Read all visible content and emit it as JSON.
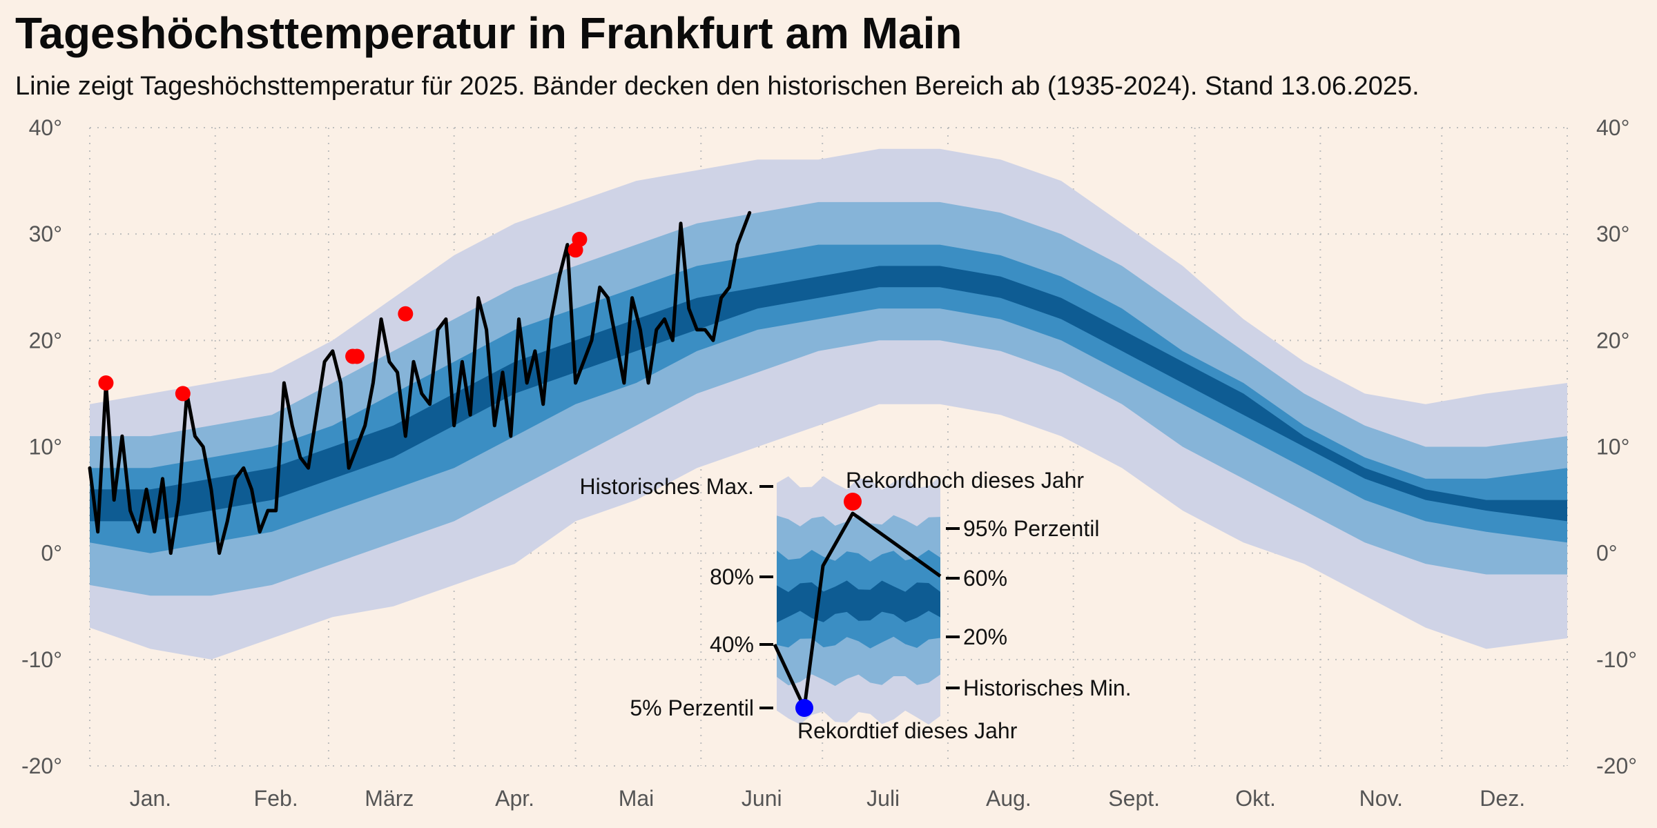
{
  "chart_data": {
    "type": "area",
    "title": "Tageshöchsttemperatur in Frankfurt am Main",
    "subtitle": "Linie zeigt Tageshöchsttemperatur für 2025. Bänder decken den historischen Bereich ab (1935-2024). Stand 13.06.2025.",
    "ylim": [
      -20,
      40
    ],
    "y_ticks": [
      "-20°",
      "-10°",
      "0°",
      "10°",
      "20°",
      "30°",
      "40°"
    ],
    "y_tick_values": [
      -20,
      -10,
      0,
      10,
      20,
      30,
      40
    ],
    "x_range_days": [
      1,
      366
    ],
    "x_ticks": [
      "Jan.",
      "Feb.",
      "März",
      "Apr.",
      "Mai",
      "Juni",
      "Juli",
      "Aug.",
      "Sept.",
      "Okt.",
      "Nov.",
      "Dez."
    ],
    "x_tick_days": [
      16,
      47,
      75,
      106,
      136,
      167,
      197,
      228,
      259,
      289,
      320,
      350
    ],
    "grid": true,
    "colors": {
      "background": "#fbf0e6",
      "band_outer": "#cfd3e6",
      "band_95": "#86b4d8",
      "band_80": "#3b8ec3",
      "band_core": "#0e5c93",
      "line": "#000000",
      "record_high": "#ff0000",
      "record_low": "#0000ff",
      "grid": "#bdbdbd",
      "tick_text": "#555555"
    },
    "bands": [
      {
        "name": "Historisches Min./Max.",
        "x": [
          1,
          16,
          31,
          46,
          61,
          76,
          91,
          106,
          121,
          136,
          151,
          166,
          181,
          196,
          211,
          226,
          241,
          256,
          271,
          286,
          301,
          316,
          331,
          346,
          366
        ],
        "low": [
          -7,
          -9,
          -10,
          -8,
          -6,
          -5,
          -3,
          -1,
          3,
          5,
          8,
          10,
          12,
          14,
          14,
          13,
          11,
          8,
          4,
          1,
          -1,
          -4,
          -7,
          -9,
          -8
        ],
        "high": [
          14,
          15,
          16,
          17,
          20,
          24,
          28,
          31,
          33,
          35,
          36,
          37,
          37,
          38,
          38,
          37,
          35,
          31,
          27,
          22,
          18,
          15,
          14,
          15,
          16
        ]
      },
      {
        "name": "5% - 95% Perzentil",
        "x": [
          1,
          16,
          31,
          46,
          61,
          76,
          91,
          106,
          121,
          136,
          151,
          166,
          181,
          196,
          211,
          226,
          241,
          256,
          271,
          286,
          301,
          316,
          331,
          346,
          366
        ],
        "low": [
          -3,
          -4,
          -4,
          -3,
          -1,
          1,
          3,
          6,
          9,
          12,
          15,
          17,
          19,
          20,
          20,
          19,
          17,
          14,
          10,
          7,
          4,
          1,
          -1,
          -2,
          -2
        ],
        "high": [
          11,
          11,
          12,
          13,
          16,
          19,
          22,
          25,
          27,
          29,
          31,
          32,
          33,
          33,
          33,
          32,
          30,
          27,
          23,
          19,
          15,
          12,
          10,
          10,
          11
        ]
      },
      {
        "name": "20% - 80% Perzentil",
        "x": [
          1,
          16,
          31,
          46,
          61,
          76,
          91,
          106,
          121,
          136,
          151,
          166,
          181,
          196,
          211,
          226,
          241,
          256,
          271,
          286,
          301,
          316,
          331,
          346,
          366
        ],
        "low": [
          1,
          0,
          1,
          2,
          4,
          6,
          8,
          11,
          14,
          16,
          19,
          21,
          22,
          23,
          23,
          22,
          20,
          17,
          14,
          11,
          8,
          5,
          3,
          2,
          1
        ],
        "high": [
          8,
          8,
          9,
          10,
          12,
          15,
          18,
          21,
          23,
          25,
          27,
          28,
          29,
          29,
          29,
          28,
          26,
          23,
          19,
          16,
          12,
          9,
          7,
          7,
          8
        ]
      },
      {
        "name": "40% - 60% Perzentil",
        "x": [
          1,
          16,
          31,
          46,
          61,
          76,
          91,
          106,
          121,
          136,
          151,
          166,
          181,
          196,
          211,
          226,
          241,
          256,
          271,
          286,
          301,
          316,
          331,
          346,
          366
        ],
        "low": [
          3,
          3,
          4,
          5,
          7,
          9,
          12,
          15,
          17,
          19,
          21,
          23,
          24,
          25,
          25,
          24,
          22,
          19,
          16,
          13,
          10,
          7,
          5,
          4,
          3
        ],
        "high": [
          6,
          6,
          7,
          8,
          10,
          12,
          15,
          18,
          20,
          22,
          24,
          25,
          26,
          27,
          27,
          26,
          24,
          21,
          18,
          15,
          11,
          8,
          6,
          5,
          5
        ]
      }
    ],
    "series": [
      {
        "name": "2025",
        "x": [
          1,
          3,
          5,
          7,
          9,
          11,
          13,
          15,
          17,
          19,
          21,
          23,
          25,
          27,
          29,
          31,
          33,
          35,
          37,
          39,
          41,
          43,
          45,
          47,
          49,
          51,
          53,
          55,
          57,
          59,
          61,
          63,
          65,
          67,
          69,
          71,
          73,
          75,
          77,
          79,
          81,
          83,
          85,
          87,
          89,
          91,
          93,
          95,
          97,
          99,
          101,
          103,
          105,
          107,
          109,
          111,
          113,
          115,
          117,
          119,
          121,
          123,
          125,
          127,
          129,
          131,
          133,
          135,
          137,
          139,
          141,
          143,
          145,
          147,
          149,
          151,
          153,
          155,
          157,
          159,
          161,
          164
        ],
        "y": [
          8,
          2,
          16,
          5,
          11,
          4,
          2,
          6,
          2,
          7,
          0,
          5,
          15,
          11,
          10,
          6,
          0,
          3,
          7,
          8,
          6,
          2,
          4,
          4,
          16,
          12,
          9,
          8,
          13,
          18,
          19,
          16,
          8,
          10,
          12,
          16,
          22,
          18,
          17,
          11,
          18,
          15,
          14,
          21,
          22,
          12,
          18,
          13,
          24,
          21,
          12,
          17,
          11,
          22,
          16,
          19,
          14,
          22,
          26,
          29,
          16,
          18,
          20,
          25,
          24,
          20,
          16,
          24,
          21,
          16,
          21,
          22,
          20,
          31,
          23,
          21,
          21,
          20,
          24,
          25,
          29,
          32
        ]
      }
    ],
    "record_highs": [
      {
        "x": 5,
        "y": 16
      },
      {
        "x": 24,
        "y": 15
      },
      {
        "x": 66,
        "y": 18.5
      },
      {
        "x": 67,
        "y": 18.5
      },
      {
        "x": 79,
        "y": 22.5
      },
      {
        "x": 121,
        "y": 28.5
      },
      {
        "x": 122,
        "y": 29.5
      }
    ],
    "record_lows": [],
    "legend": {
      "placement": "center-bottom",
      "labels": {
        "hist_max": "Historisches Max.",
        "hist_min": "Historisches Min.",
        "p95": "95% Perzentil",
        "p80": "80%",
        "p60": "60%",
        "p40": "40%",
        "p20": "20%",
        "p5": "5% Perzentil",
        "record_high": "Rekordhoch dieses Jahr",
        "record_low": "Rekordtief dieses Jahr"
      }
    }
  }
}
